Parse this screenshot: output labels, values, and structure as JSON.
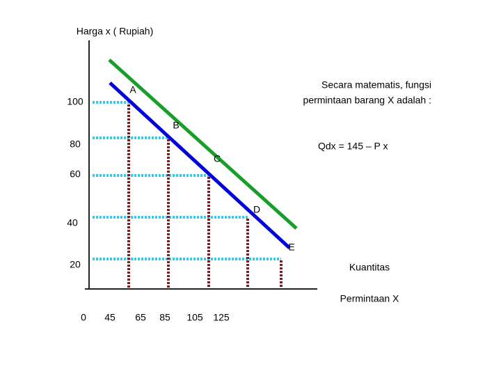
{
  "y_axis_label": "Harga x ( Rupiah)",
  "x_axis_label": [
    "Kuantitas",
    "Permintaan X"
  ],
  "y_labels": [
    "100",
    "80",
    "60",
    "40",
    "20"
  ],
  "x_labels": [
    "0",
    "45",
    "65",
    "85",
    "105",
    "125"
  ],
  "points": [
    "A",
    "B",
    "C",
    "D",
    "E"
  ],
  "annotation": {
    "text": [
      "Secara matematis, fungsi",
      "permintaan barang X adalah :"
    ],
    "equation": "Qdx = 145 – P x"
  }
}
